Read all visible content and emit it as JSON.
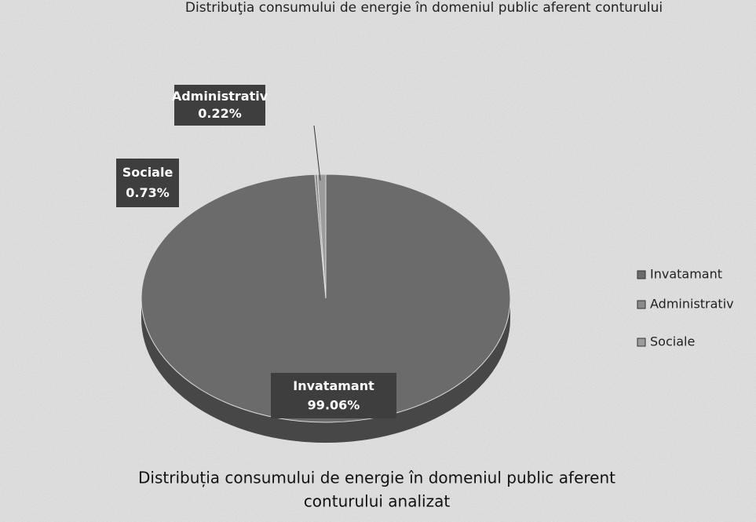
{
  "header": "Distribuţia consumului de energie în domeniul public aferent conturului",
  "chart_data": {
    "type": "pie",
    "title": [
      "Distribuția consumului de energie în domeniul public aferent",
      "conturului analizat"
    ],
    "categories": [
      "Invatamant",
      "Administrativ",
      "Sociale"
    ],
    "values": [
      99.06,
      0.22,
      0.73
    ],
    "value_labels": [
      "99.06%",
      "0.22%",
      "0.73%"
    ],
    "colors": [
      "#6b6b6b",
      "#8a8a8a",
      "#9c9c9c"
    ],
    "legend": "right"
  }
}
